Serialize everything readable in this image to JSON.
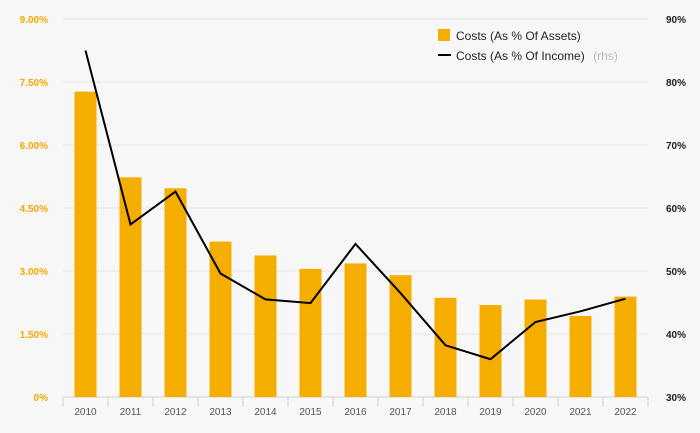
{
  "chart_data": {
    "type": "bar+line",
    "categories": [
      "2010",
      "2011",
      "2012",
      "2013",
      "2014",
      "2015",
      "2016",
      "2017",
      "2018",
      "2019",
      "2020",
      "2021",
      "2022"
    ],
    "series": [
      {
        "name": "Costs (As % Of Assets)",
        "type": "bar",
        "axis": "left",
        "color": "#f5ae00",
        "values": [
          7.27,
          5.23,
          4.97,
          3.7,
          3.37,
          3.05,
          3.18,
          2.9,
          2.36,
          2.19,
          2.32,
          1.93,
          2.39
        ]
      },
      {
        "name": "Costs (As % Of Income)",
        "suffix": "(rhs)",
        "type": "line",
        "axis": "right",
        "color": "#000000",
        "values": [
          85.0,
          57.4,
          62.6,
          49.6,
          45.5,
          44.9,
          54.3,
          46.5,
          38.2,
          36.0,
          41.9,
          43.6,
          45.6
        ]
      }
    ],
    "y_left": {
      "ylim": [
        0,
        9
      ],
      "ticks": [
        0,
        1.5,
        3,
        4.5,
        6,
        7.5,
        9
      ],
      "tick_labels": [
        "0%",
        "1.50%",
        "3.00%",
        "4.50%",
        "6.00%",
        "7.50%",
        "9.00%"
      ]
    },
    "y_right": {
      "ylim": [
        30,
        90
      ],
      "ticks": [
        30,
        40,
        50,
        60,
        70,
        80,
        90
      ],
      "tick_labels": [
        "30%",
        "40%",
        "50%",
        "60%",
        "70%",
        "80%",
        "90%"
      ]
    },
    "legend_position": "top-right",
    "grid": true
  }
}
